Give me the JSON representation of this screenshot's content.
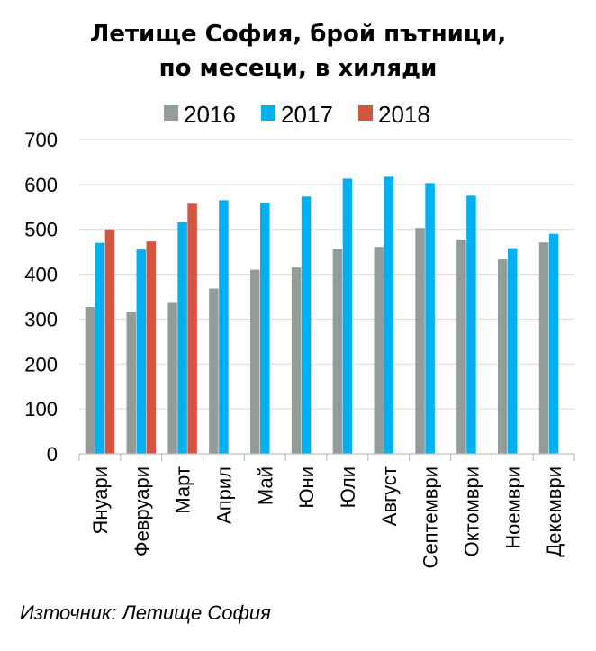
{
  "chart_data": {
    "type": "bar",
    "title_lines": [
      "Летище София, брой пътници,",
      "по месеци, в хиляди"
    ],
    "categories": [
      "Януари",
      "Февруари",
      "Март",
      "Април",
      "Май",
      "Юни",
      "Юли",
      "Август",
      "Септември",
      "Октомври",
      "Ноември",
      "Декември"
    ],
    "series": [
      {
        "name": "2016",
        "color": "#939d97",
        "values": [
          327,
          316,
          338,
          368,
          410,
          415,
          456,
          461,
          503,
          477,
          433,
          471
        ]
      },
      {
        "name": "2017",
        "color": "#00b0f0",
        "values": [
          470,
          455,
          516,
          565,
          559,
          573,
          613,
          617,
          603,
          575,
          458,
          490
        ]
      },
      {
        "name": "2018",
        "color": "#d35440",
        "values": [
          500,
          473,
          557,
          null,
          null,
          null,
          null,
          null,
          null,
          null,
          null,
          null
        ]
      }
    ],
    "ylim": [
      0,
      700
    ],
    "yticks": [
      0,
      100,
      200,
      300,
      400,
      500,
      600,
      700
    ],
    "grid": true,
    "legend_position": "top",
    "source": "Източник: Летище София"
  }
}
